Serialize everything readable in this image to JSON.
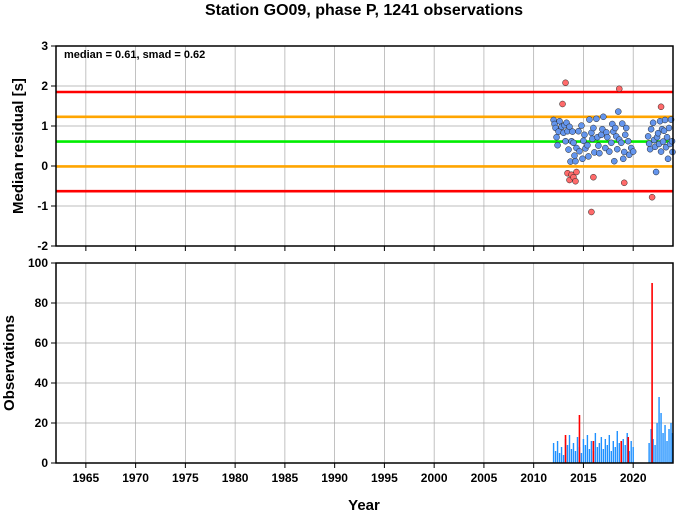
{
  "chart_data": [
    {
      "type": "scatter",
      "title": "Station GO09, phase P, 1241 observations",
      "xlabel": "",
      "ylabel": "Median residual [s]",
      "xlim": [
        1962,
        2024
      ],
      "ylim": [
        -2,
        3
      ],
      "x_ticks": [
        1965,
        1970,
        1975,
        1980,
        1985,
        1990,
        1995,
        2000,
        2005,
        2010,
        2015,
        2020
      ],
      "y_ticks": [
        -2,
        -1,
        0,
        1,
        2,
        3
      ],
      "grid": true,
      "annotation": "median = 0.61, smad = 0.62",
      "reference_lines": [
        {
          "y": 1.85,
          "color": "#ff0000"
        },
        {
          "y": 1.23,
          "color": "#ffa500"
        },
        {
          "y": 0.61,
          "color": "#00ee00"
        },
        {
          "y": -0.01,
          "color": "#ffa500"
        },
        {
          "y": -0.63,
          "color": "#ff0000"
        }
      ],
      "series": [
        {
          "color": "#6495ed",
          "points": [
            [
              2012.0,
              1.15
            ],
            [
              2012.1,
              1.05
            ],
            [
              2012.2,
              0.95
            ],
            [
              2012.3,
              0.72
            ],
            [
              2012.4,
              0.52
            ],
            [
              2012.5,
              0.86
            ],
            [
              2012.6,
              1.12
            ],
            [
              2012.8,
              0.98
            ],
            [
              2013.0,
              0.83
            ],
            [
              2013.1,
              1.02
            ],
            [
              2013.2,
              0.62
            ],
            [
              2013.3,
              1.08
            ],
            [
              2013.4,
              0.87
            ],
            [
              2013.5,
              0.41
            ],
            [
              2013.6,
              0.98
            ],
            [
              2013.7,
              0.11
            ],
            [
              2013.8,
              0.62
            ],
            [
              2013.9,
              0.86
            ],
            [
              2014.0,
              0.58
            ],
            [
              2014.1,
              0.26
            ],
            [
              2014.2,
              0.12
            ],
            [
              2014.3,
              0.45
            ],
            [
              2014.5,
              0.87
            ],
            [
              2014.6,
              0.37
            ],
            [
              2014.8,
              1.01
            ],
            [
              2014.9,
              0.18
            ],
            [
              2015.0,
              0.63
            ],
            [
              2015.1,
              0.78
            ],
            [
              2015.2,
              0.44
            ],
            [
              2015.4,
              0.52
            ],
            [
              2015.5,
              0.24
            ],
            [
              2015.6,
              1.16
            ],
            [
              2015.8,
              0.83
            ],
            [
              2015.9,
              0.68
            ],
            [
              2016.0,
              0.95
            ],
            [
              2016.1,
              0.34
            ],
            [
              2016.3,
              1.18
            ],
            [
              2016.4,
              0.72
            ],
            [
              2016.5,
              0.51
            ],
            [
              2016.6,
              0.32
            ],
            [
              2016.8,
              0.78
            ],
            [
              2016.9,
              0.92
            ],
            [
              2017.0,
              1.23
            ],
            [
              2017.2,
              0.45
            ],
            [
              2017.3,
              0.84
            ],
            [
              2017.4,
              0.72
            ],
            [
              2017.6,
              0.36
            ],
            [
              2017.8,
              0.58
            ],
            [
              2017.9,
              1.05
            ],
            [
              2018.0,
              0.86
            ],
            [
              2018.1,
              0.12
            ],
            [
              2018.2,
              0.95
            ],
            [
              2018.3,
              0.74
            ],
            [
              2018.4,
              0.42
            ],
            [
              2018.5,
              1.36
            ],
            [
              2018.6,
              0.66
            ],
            [
              2018.8,
              0.58
            ],
            [
              2018.9,
              1.06
            ],
            [
              2019.0,
              0.18
            ],
            [
              2019.1,
              0.35
            ],
            [
              2019.2,
              0.78
            ],
            [
              2019.3,
              0.95
            ],
            [
              2019.5,
              0.62
            ],
            [
              2019.6,
              0.28
            ],
            [
              2019.8,
              0.45
            ],
            [
              2020.0,
              0.36
            ],
            [
              2021.5,
              0.74
            ],
            [
              2021.6,
              0.56
            ],
            [
              2021.7,
              0.42
            ],
            [
              2021.8,
              0.92
            ],
            [
              2022.0,
              1.08
            ],
            [
              2022.1,
              0.65
            ],
            [
              2022.2,
              0.48
            ],
            [
              2022.3,
              -0.15
            ],
            [
              2022.4,
              0.72
            ],
            [
              2022.5,
              0.82
            ],
            [
              2022.6,
              0.55
            ],
            [
              2022.7,
              1.12
            ],
            [
              2022.8,
              0.36
            ],
            [
              2022.9,
              0.92
            ],
            [
              2023.0,
              0.61
            ],
            [
              2023.1,
              0.88
            ],
            [
              2023.2,
              1.15
            ],
            [
              2023.3,
              0.47
            ],
            [
              2023.4,
              0.72
            ],
            [
              2023.5,
              0.18
            ],
            [
              2023.6,
              0.95
            ],
            [
              2023.7,
              0.55
            ],
            [
              2023.8,
              1.16
            ],
            [
              2023.9,
              0.62
            ],
            [
              2023.95,
              0.35
            ]
          ]
        },
        {
          "color": "#ff6a6a",
          "points": [
            [
              2012.9,
              1.55
            ],
            [
              2013.2,
              2.08
            ],
            [
              2013.4,
              -0.18
            ],
            [
              2013.6,
              -0.35
            ],
            [
              2013.8,
              -0.22
            ],
            [
              2014.0,
              -0.28
            ],
            [
              2014.2,
              -0.38
            ],
            [
              2014.3,
              -0.15
            ],
            [
              2015.8,
              -1.15
            ],
            [
              2016.0,
              -0.28
            ],
            [
              2018.6,
              1.93
            ],
            [
              2019.1,
              -0.42
            ],
            [
              2021.9,
              -0.78
            ],
            [
              2022.8,
              1.48
            ]
          ]
        }
      ]
    },
    {
      "type": "bar",
      "title": "",
      "xlabel": "Year",
      "ylabel": "Observations",
      "xlim": [
        1962,
        2024
      ],
      "ylim": [
        0,
        100
      ],
      "x_ticks": [
        1965,
        1970,
        1975,
        1980,
        1985,
        1990,
        1995,
        2000,
        2005,
        2010,
        2015,
        2020
      ],
      "y_ticks": [
        0,
        20,
        40,
        60,
        80,
        100
      ],
      "grid": true,
      "series": [
        {
          "color": "#1e90ff",
          "bars": [
            [
              2012.0,
              10
            ],
            [
              2012.2,
              6
            ],
            [
              2012.4,
              11
            ],
            [
              2012.6,
              5
            ],
            [
              2012.8,
              8
            ],
            [
              2013.0,
              4
            ],
            [
              2013.2,
              12
            ],
            [
              2013.4,
              9
            ],
            [
              2013.6,
              14
            ],
            [
              2013.8,
              7
            ],
            [
              2014.0,
              10
            ],
            [
              2014.2,
              6
            ],
            [
              2014.4,
              13
            ],
            [
              2014.6,
              8
            ],
            [
              2014.8,
              5
            ],
            [
              2015.0,
              12
            ],
            [
              2015.2,
              9
            ],
            [
              2015.4,
              14
            ],
            [
              2015.6,
              7
            ],
            [
              2015.8,
              11
            ],
            [
              2016.0,
              6
            ],
            [
              2016.2,
              15
            ],
            [
              2016.4,
              8
            ],
            [
              2016.6,
              10
            ],
            [
              2016.8,
              13
            ],
            [
              2017.0,
              7
            ],
            [
              2017.2,
              12
            ],
            [
              2017.4,
              9
            ],
            [
              2017.6,
              14
            ],
            [
              2017.8,
              6
            ],
            [
              2018.0,
              11
            ],
            [
              2018.2,
              8
            ],
            [
              2018.4,
              16
            ],
            [
              2018.6,
              10
            ],
            [
              2018.8,
              7
            ],
            [
              2019.0,
              12
            ],
            [
              2019.2,
              9
            ],
            [
              2019.4,
              15
            ],
            [
              2019.6,
              6
            ],
            [
              2019.8,
              11
            ],
            [
              2020.0,
              8
            ],
            [
              2021.6,
              10
            ],
            [
              2021.8,
              17
            ],
            [
              2022.0,
              12
            ],
            [
              2022.2,
              9
            ],
            [
              2022.4,
              20
            ],
            [
              2022.6,
              33
            ],
            [
              2022.8,
              25
            ],
            [
              2023.0,
              15
            ],
            [
              2023.2,
              19
            ],
            [
              2023.4,
              11
            ],
            [
              2023.6,
              17
            ],
            [
              2023.8,
              20
            ],
            [
              2023.95,
              15
            ]
          ]
        },
        {
          "color": "#ff0000",
          "bars": [
            [
              2013.2,
              14
            ],
            [
              2014.6,
              24
            ],
            [
              2016.0,
              11
            ],
            [
              2018.8,
              11
            ],
            [
              2019.5,
              13
            ],
            [
              2021.9,
              90
            ]
          ]
        }
      ]
    }
  ]
}
